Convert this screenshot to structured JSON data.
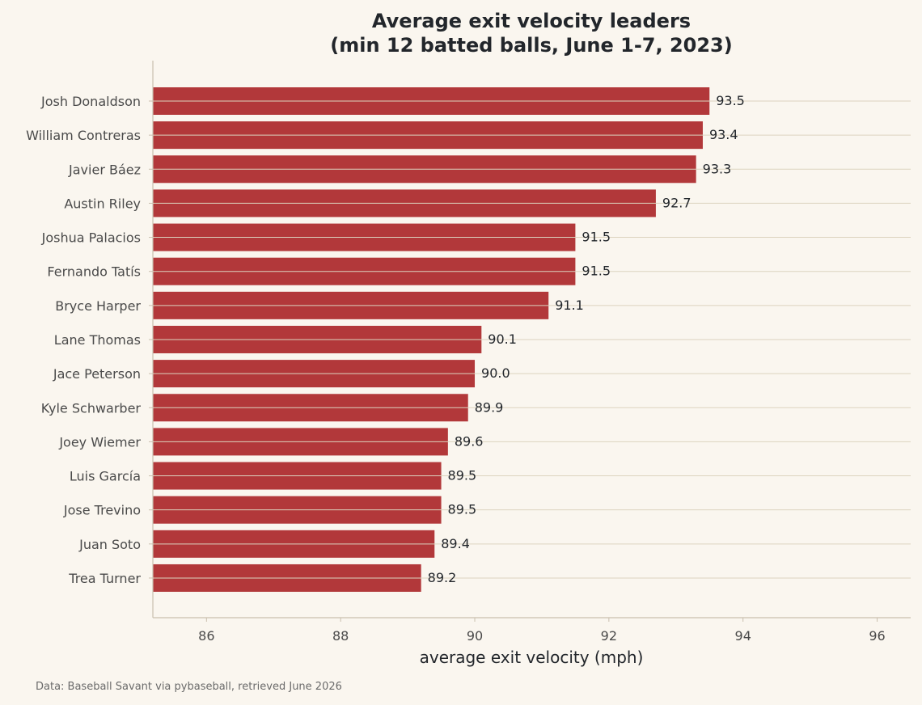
{
  "title_line1": "Average exit velocity leaders",
  "title_line2": "(min 12 batted balls, June 1-7, 2023)",
  "source": "Data: Baseball Savant via pybaseball, retrieved June 2026",
  "colors": {
    "background": "#faf6ef",
    "bar": "#b2383a",
    "grid": "#dcd3bf",
    "axis": "#c9bfae"
  },
  "chart_data": {
    "type": "bar",
    "orientation": "horizontal",
    "title": "Average exit velocity leaders (min 12 batted balls, June 1-7, 2023)",
    "xlabel": "average exit velocity (mph)",
    "ylabel": "",
    "xlim": [
      85.2,
      96.5
    ],
    "xticks": [
      86,
      88,
      90,
      92,
      94,
      96
    ],
    "grid": "horizontal lines",
    "categories": [
      "Josh Donaldson",
      "William Contreras",
      "Javier Báez",
      "Austin Riley",
      "Joshua Palacios",
      "Fernando Tatís",
      "Bryce Harper",
      "Lane Thomas",
      "Jace Peterson",
      "Kyle Schwarber",
      "Joey Wiemer",
      "Luis García",
      "Jose Trevino",
      "Juan Soto",
      "Trea Turner"
    ],
    "values": [
      93.5,
      93.4,
      93.3,
      92.7,
      91.5,
      91.5,
      91.1,
      90.1,
      90.0,
      89.9,
      89.6,
      89.5,
      89.5,
      89.4,
      89.2
    ],
    "value_labels": [
      "93.5",
      "93.4",
      "93.3",
      "92.7",
      "91.5",
      "91.5",
      "91.1",
      "90.1",
      "90.0",
      "89.9",
      "89.6",
      "89.5",
      "89.5",
      "89.4",
      "89.2"
    ]
  }
}
